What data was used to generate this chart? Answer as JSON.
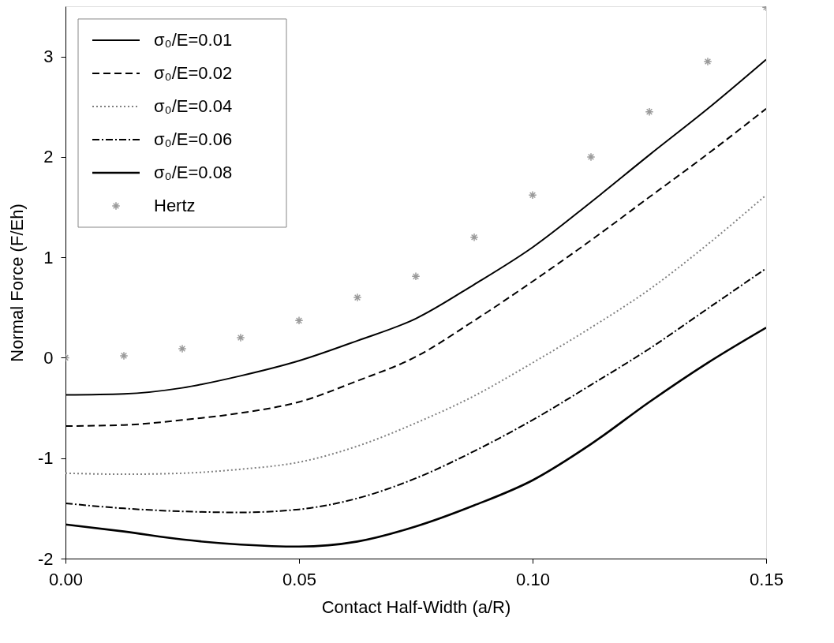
{
  "chart_data": {
    "type": "line",
    "xlabel": "Contact Half-Width (a/R)",
    "ylabel": "Normal Force (F/Eh)",
    "x": [
      0,
      0.0125,
      0.025,
      0.0375,
      0.05,
      0.0625,
      0.075,
      0.0875,
      0.1,
      0.1125,
      0.125,
      0.1375,
      0.15
    ],
    "series": [
      {
        "name": "σ₀/E=0.01",
        "color": "#000000",
        "line_style": "solid",
        "values": [
          -0.37,
          -0.36,
          -0.3,
          -0.18,
          -0.03,
          0.17,
          0.39,
          0.73,
          1.1,
          1.55,
          2.02,
          2.48,
          2.97
        ]
      },
      {
        "name": "σ₀/E=0.02",
        "color": "#000000",
        "line_style": "dashed",
        "values": [
          -0.68,
          -0.67,
          -0.62,
          -0.55,
          -0.44,
          -0.23,
          0.01,
          0.37,
          0.76,
          1.17,
          1.6,
          2.03,
          2.48
        ]
      },
      {
        "name": "σ₀/E=0.04",
        "color": "#808080",
        "line_style": "dotted",
        "values": [
          -1.15,
          -1.16,
          -1.15,
          -1.11,
          -1.04,
          -0.88,
          -0.65,
          -0.38,
          -0.05,
          0.3,
          0.68,
          1.13,
          1.62
        ]
      },
      {
        "name": "σ₀/E=0.06",
        "color": "#000000",
        "line_style": "dashdot",
        "values": [
          -1.45,
          -1.5,
          -1.53,
          -1.54,
          -1.51,
          -1.4,
          -1.2,
          -0.93,
          -0.62,
          -0.27,
          0.09,
          0.49,
          0.89
        ]
      },
      {
        "name": "σ₀/E=0.08",
        "color": "#000000",
        "line_style": "solid",
        "values": [
          -1.66,
          -1.73,
          -1.81,
          -1.86,
          -1.88,
          -1.83,
          -1.68,
          -1.47,
          -1.22,
          -0.86,
          -0.44,
          -0.05,
          0.3
        ]
      },
      {
        "name": "Hertz",
        "type": "scatter",
        "marker": "cross",
        "color": "#707070",
        "values": [
          0,
          0.02,
          0.09,
          0.2,
          0.37,
          0.6,
          0.81,
          1.2,
          1.62,
          2.0,
          2.45,
          2.95,
          3.49
        ]
      }
    ],
    "xlim": [
      0,
      0.15
    ],
    "xticks": [
      {
        "value": 0,
        "label": "0.00"
      },
      0.05,
      {
        "value": 0.1,
        "label": "0.10"
      },
      0.15
    ],
    "ylim": [
      -2,
      3.5
    ],
    "yticks": [
      -2,
      -1,
      0,
      1,
      2,
      3
    ],
    "grid": false,
    "legend": "top left"
  }
}
